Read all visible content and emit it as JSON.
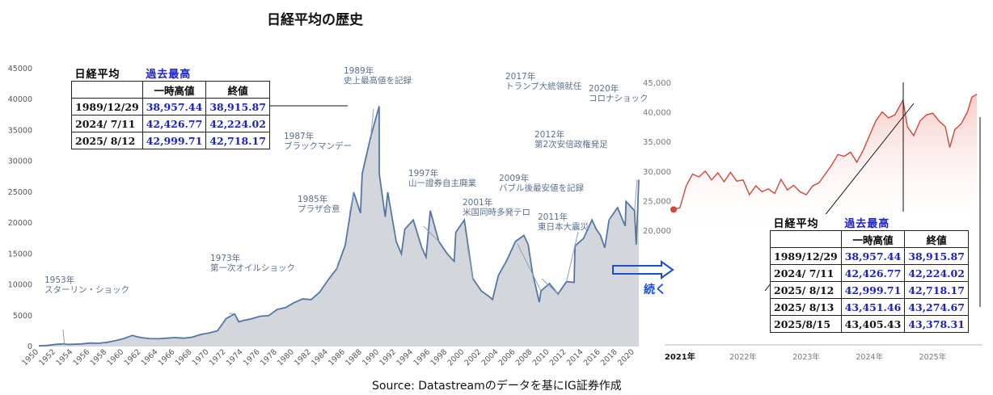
{
  "title": "日経平均の歴史",
  "source": "Source: Datastreamのデータを基にIG証券作成",
  "continue_label": "続く",
  "colors": {
    "accent_blue": "#1a22c8",
    "left_line": "#5577a8",
    "left_fill": "#d3d6db",
    "right_line": "#d9443a",
    "right_fill": "#f6c9c4"
  },
  "table_left": {
    "heading": "日経平均",
    "heading_highlight": "過去最高",
    "col_headers": [
      "一時高値",
      "終値"
    ],
    "rows": [
      {
        "date": "1989/12/29",
        "high": "38,957.44",
        "close": "38,915.87"
      },
      {
        "date": "2024/ 7/11",
        "high": "42,426.77",
        "close": "42,224.02"
      },
      {
        "date": "2025/ 8/12",
        "high": "42,999.71",
        "close": "42,718.17"
      }
    ]
  },
  "table_right": {
    "heading": "日経平均",
    "heading_highlight": "過去最高",
    "col_headers": [
      "一時高値",
      "終値"
    ],
    "rows": [
      {
        "date": "1989/12/29",
        "high": "38,957.44",
        "close": "38,915.87"
      },
      {
        "date": "2024/ 7/11",
        "high": "42,426.77",
        "close": "42,224.02"
      },
      {
        "date": "2025/ 8/12",
        "high": "42,999.71",
        "close": "42,718.17"
      },
      {
        "date": "2025/ 8/13",
        "high": "43,451.46",
        "close": "43,274.67"
      },
      {
        "date": "2025/8/15",
        "high": "43,405.43",
        "close": "43,378.31"
      }
    ]
  },
  "chart_data": [
    {
      "type": "area",
      "title": "日経平均の歴史",
      "xlabel": "",
      "ylabel": "",
      "xlim": [
        1950,
        2020.5
      ],
      "ylim": [
        0,
        45000
      ],
      "yticks": [
        0,
        5000,
        10000,
        15000,
        20000,
        25000,
        30000,
        35000,
        40000,
        45000
      ],
      "ytick_labels": [
        "0",
        "5000",
        "10000",
        "15000",
        "20000",
        "25000",
        "30000",
        "35000",
        "40000",
        "45000"
      ],
      "xticks": [
        1950,
        1952,
        1954,
        1956,
        1958,
        1960,
        1962,
        1964,
        1966,
        1968,
        1970,
        1972,
        1974,
        1976,
        1978,
        1980,
        1982,
        1984,
        1986,
        1988,
        1990,
        1992,
        1994,
        1996,
        1998,
        2000,
        2002,
        2004,
        2006,
        2008,
        2010,
        2012,
        2014,
        2016,
        2018,
        2020
      ],
      "xtick_labels": [
        "1950",
        "1952",
        "1954",
        "1956",
        "1958",
        "1960",
        "1962",
        "1964",
        "1966",
        "1968",
        "1970",
        "1972",
        "1974",
        "1976",
        "1978",
        "1980",
        "1982",
        "1984",
        "1986",
        "1988",
        "1990",
        "1992",
        "1994",
        "1996",
        "1998",
        "2000",
        "2002",
        "2004",
        "2006",
        "2008",
        "2010",
        "2012",
        "2014",
        "2016",
        "2018",
        "2020"
      ],
      "grid": false,
      "series": [
        {
          "x": [
            1950,
            1951,
            1952,
            1953,
            1953.3,
            1954,
            1955,
            1956,
            1957,
            1958,
            1959,
            1960,
            1961,
            1961.5,
            1962,
            1963,
            1964,
            1965,
            1966,
            1967,
            1968,
            1969,
            1970,
            1971,
            1972,
            1973,
            1973.5,
            1974,
            1975,
            1976,
            1977,
            1978,
            1979,
            1980,
            1981,
            1982,
            1983,
            1984,
            1985,
            1986,
            1987,
            1987.8,
            1988,
            1989,
            1989.99,
            1990,
            1990.7,
            1991,
            1992,
            1992.6,
            1993,
            1994,
            1995,
            1995.5,
            1996,
            1997,
            1998,
            1998.8,
            1999,
            2000,
            2001,
            2002,
            2003,
            2003.3,
            2004,
            2005,
            2006,
            2007,
            2007.5,
            2008,
            2008.8,
            2009,
            2010,
            2011,
            2012,
            2012.9,
            2013,
            2014,
            2015,
            2015.5,
            2016,
            2016.5,
            2017,
            2018,
            2018.9,
            2019,
            2020,
            2020.2,
            2020.5
          ],
          "y": [
            100,
            170,
            350,
            450,
            340,
            370,
            420,
            560,
            520,
            680,
            950,
            1300,
            1800,
            1600,
            1450,
            1300,
            1250,
            1350,
            1450,
            1350,
            1500,
            1950,
            2200,
            2550,
            4500,
            5300,
            4000,
            4200,
            4500,
            4900,
            5000,
            6000,
            6300,
            7100,
            7700,
            7600,
            8800,
            10800,
            12600,
            16400,
            25000,
            21600,
            28000,
            34000,
            38915,
            28000,
            21000,
            25000,
            17000,
            15000,
            19000,
            20500,
            16000,
            14500,
            22000,
            17000,
            15000,
            13800,
            18500,
            20500,
            11000,
            9000,
            8000,
            7600,
            11500,
            14000,
            17000,
            18000,
            16500,
            12000,
            7200,
            9000,
            10200,
            8500,
            10500,
            10400,
            16300,
            17500,
            20500,
            19000,
            18000,
            16000,
            20500,
            22500,
            19500,
            23500,
            22000,
            16500,
            27000
          ]
        }
      ],
      "annotations": [
        {
          "year": 1953,
          "label_lines": [
            "1953年",
            "スターリン・ショック"
          ]
        },
        {
          "year": 1973,
          "label_lines": [
            "1973年",
            "第一次オイルショック"
          ]
        },
        {
          "year": 1985,
          "label_lines": [
            "1985年",
            "プラザ合意"
          ]
        },
        {
          "year": 1987,
          "label_lines": [
            "1987年",
            "ブラックマンデー"
          ]
        },
        {
          "year": 1989,
          "label_lines": [
            "1989年",
            "史上最高値を記録"
          ]
        },
        {
          "year": 1997,
          "label_lines": [
            "1997年",
            "山一證券自主廃業"
          ]
        },
        {
          "year": 2001,
          "label_lines": [
            "2001年",
            "米国同時多発テロ"
          ]
        },
        {
          "year": 2009,
          "label_lines": [
            "2009年",
            "バブル後最安値を記録"
          ]
        },
        {
          "year": 2011,
          "label_lines": [
            "2011年",
            "東日本大震災"
          ]
        },
        {
          "year": 2012,
          "label_lines": [
            "2012年",
            "第2次安倍政権発足"
          ]
        },
        {
          "year": 2017,
          "label_lines": [
            "2017年",
            "トランプ大統領就任"
          ]
        },
        {
          "year": 2020,
          "label_lines": [
            "2020年",
            "コロナショック"
          ]
        }
      ]
    },
    {
      "type": "area",
      "title": "",
      "xlabel": "",
      "ylabel": "",
      "xlim": [
        2020.9,
        2025.75
      ],
      "ylim": [
        20000,
        45000
      ],
      "yticks": [
        20000,
        25000,
        30000,
        35000,
        40000,
        45000
      ],
      "ytick_labels": [
        "20,000",
        "25,000",
        "30,000",
        "35,000",
        "40,000",
        "45,000"
      ],
      "xticks": [
        2021,
        2022,
        2023,
        2024,
        2025
      ],
      "xtick_labels": [
        "2021年",
        "2022年",
        "2023年",
        "2024年",
        "2025年"
      ],
      "grid": false,
      "series": [
        {
          "x": [
            2020.9,
            2021.0,
            2021.1,
            2021.2,
            2021.3,
            2021.4,
            2021.5,
            2021.6,
            2021.7,
            2021.8,
            2021.9,
            2022.0,
            2022.1,
            2022.2,
            2022.3,
            2022.4,
            2022.5,
            2022.6,
            2022.7,
            2022.8,
            2022.9,
            2023.0,
            2023.1,
            2023.2,
            2023.3,
            2023.4,
            2023.5,
            2023.6,
            2023.7,
            2023.8,
            2023.9,
            2024.0,
            2024.1,
            2024.2,
            2024.3,
            2024.4,
            2024.53,
            2024.6,
            2024.7,
            2024.8,
            2024.9,
            2025.0,
            2025.1,
            2025.2,
            2025.27,
            2025.35,
            2025.45,
            2025.55,
            2025.62,
            2025.7
          ],
          "y": [
            23500,
            23800,
            27500,
            29500,
            29000,
            30000,
            28500,
            29700,
            28200,
            29800,
            28300,
            28500,
            26000,
            27500,
            26500,
            27000,
            26200,
            28600,
            26800,
            27600,
            26500,
            26000,
            27500,
            28000,
            29500,
            31000,
            32800,
            32500,
            33200,
            31500,
            33500,
            36000,
            38500,
            40000,
            39000,
            39500,
            42000,
            37500,
            36000,
            38500,
            39500,
            39800,
            38500,
            37500,
            34000,
            37000,
            38000,
            40000,
            42500,
            43000
          ]
        }
      ]
    }
  ]
}
